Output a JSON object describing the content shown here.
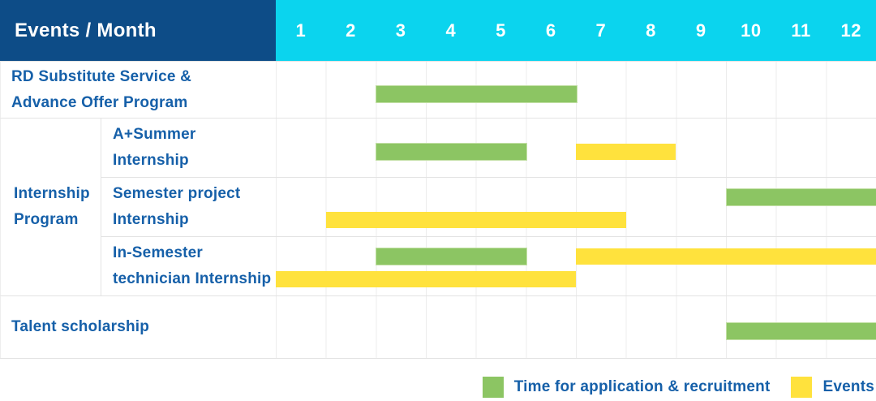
{
  "header": {
    "title": "Events / Month",
    "months": [
      "1",
      "2",
      "3",
      "4",
      "5",
      "6",
      "7",
      "8",
      "9",
      "10",
      "11",
      "12"
    ]
  },
  "group_label": {
    "lines": [
      "Internship",
      "Program"
    ]
  },
  "colors": {
    "header_bg": "#0d4c87",
    "months_bg": "#0bd4ee",
    "text_blue": "#1660a9",
    "grid_line": "#ececec",
    "application_green": "#8cc563",
    "events_yellow": "#ffe23d"
  },
  "legend": {
    "items": [
      {
        "key": "application",
        "label": "Time for application & recruitment",
        "color": "#8cc563"
      },
      {
        "key": "events",
        "label": "Events",
        "color": "#ffe23d"
      }
    ]
  },
  "chart_data": {
    "type": "gantt",
    "title": "Events / Month",
    "x_axis": {
      "unit": "month",
      "ticks": [
        1,
        2,
        3,
        4,
        5,
        6,
        7,
        8,
        9,
        10,
        11,
        12
      ],
      "range": [
        1,
        12
      ]
    },
    "grid": true,
    "legend_position": "bottom-right",
    "series": [
      {
        "key": "application",
        "name": "Time for application & recruitment",
        "color": "#8cc563"
      },
      {
        "key": "events",
        "name": "Events",
        "color": "#ffe23d"
      }
    ],
    "rows": [
      {
        "label": "RD Substitute Service & Advance Offer Program",
        "label_lines": [
          "RD Substitute Service &",
          "Advance Offer Program"
        ],
        "group": null,
        "lines": [
          [
            {
              "series": "application",
              "start": 3,
              "end": 6
            }
          ]
        ]
      },
      {
        "label": "A+Summer Internship",
        "label_lines": [
          "A+Summer",
          "Internship"
        ],
        "group": "Internship Program",
        "lines": [
          [
            {
              "series": "application",
              "start": 3,
              "end": 5
            },
            {
              "series": "events",
              "start": 7,
              "end": 8
            }
          ]
        ]
      },
      {
        "label": "Semester project Internship",
        "label_lines": [
          "Semester project",
          "Internship"
        ],
        "group": "Internship Program",
        "lines": [
          [
            {
              "series": "application",
              "start": 10,
              "end": 12
            }
          ],
          [
            {
              "series": "events",
              "start": 2,
              "end": 7
            }
          ]
        ]
      },
      {
        "label": "In-Semester technician Internship",
        "label_lines": [
          "In-Semester",
          "technician Internship"
        ],
        "group": "Internship Program",
        "lines": [
          [
            {
              "series": "application",
              "start": 3,
              "end": 5
            },
            {
              "series": "events",
              "start": 7,
              "end": 12
            }
          ],
          [
            {
              "series": "events",
              "start": 1,
              "end": 6
            }
          ]
        ]
      },
      {
        "label": "Talent scholarship",
        "label_lines": [
          "Talent scholarship"
        ],
        "group": null,
        "lines": [
          [
            {
              "series": "application",
              "start": 10,
              "end": 12
            }
          ]
        ]
      }
    ]
  }
}
